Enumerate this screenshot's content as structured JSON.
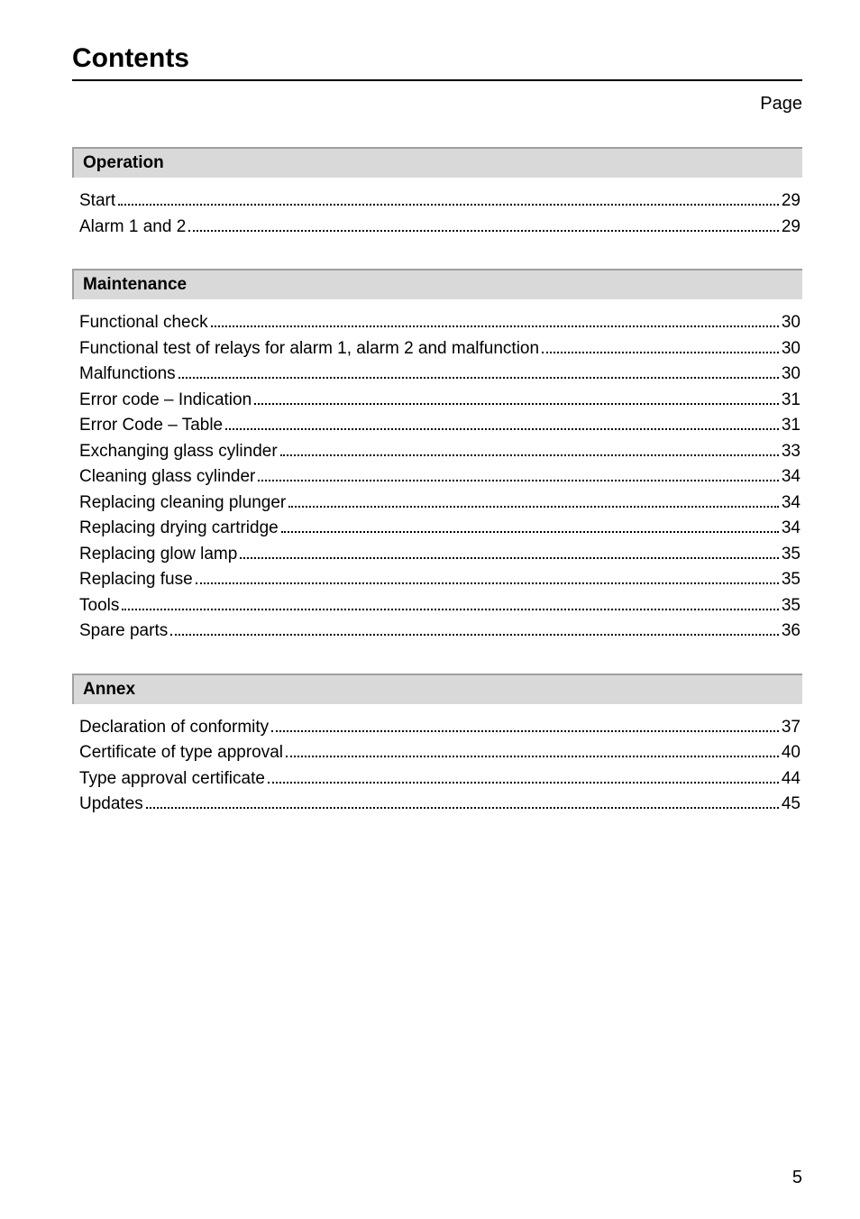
{
  "title": "Contents",
  "page_label": "Page",
  "page_number": "5",
  "colors": {
    "section_bg": "#d9d9d9",
    "section_border": "#9f9f9f",
    "text": "#000000",
    "background": "#ffffff"
  },
  "typography": {
    "title_fontsize": 30,
    "body_fontsize": 19,
    "font_family": "Arial"
  },
  "sections": [
    {
      "heading": "Operation",
      "entries": [
        {
          "label": "Start",
          "page": "29"
        },
        {
          "label": "Alarm 1 and 2",
          "page": "29"
        }
      ]
    },
    {
      "heading": "Maintenance",
      "entries": [
        {
          "label": "Functional check",
          "page": "30"
        },
        {
          "label": "Functional test of relays for alarm 1, alarm 2 and malfunction",
          "page": "30"
        },
        {
          "label": "Malfunctions",
          "page": "30"
        },
        {
          "label": "Error code – Indication",
          "page": "31"
        },
        {
          "label": "Error Code – Table",
          "page": "31"
        },
        {
          "label": "Exchanging glass cylinder",
          "page": "33"
        },
        {
          "label": "Cleaning glass cylinder",
          "page": "34"
        },
        {
          "label": "Replacing cleaning plunger",
          "page": "34"
        },
        {
          "label": "Replacing drying cartridge",
          "page": "34"
        },
        {
          "label": "Replacing glow lamp",
          "page": "35"
        },
        {
          "label": "Replacing fuse",
          "page": "35"
        },
        {
          "label": "Tools",
          "page": "35"
        },
        {
          "label": "Spare parts",
          "page": "36"
        }
      ]
    },
    {
      "heading": "Annex",
      "entries": [
        {
          "label": "Declaration of conformity",
          "page": "37"
        },
        {
          "label": "Certificate of type approval",
          "page": "40"
        },
        {
          "label": "Type approval certificate",
          "page": "44"
        },
        {
          "label": "Updates",
          "page": "45"
        }
      ]
    }
  ]
}
